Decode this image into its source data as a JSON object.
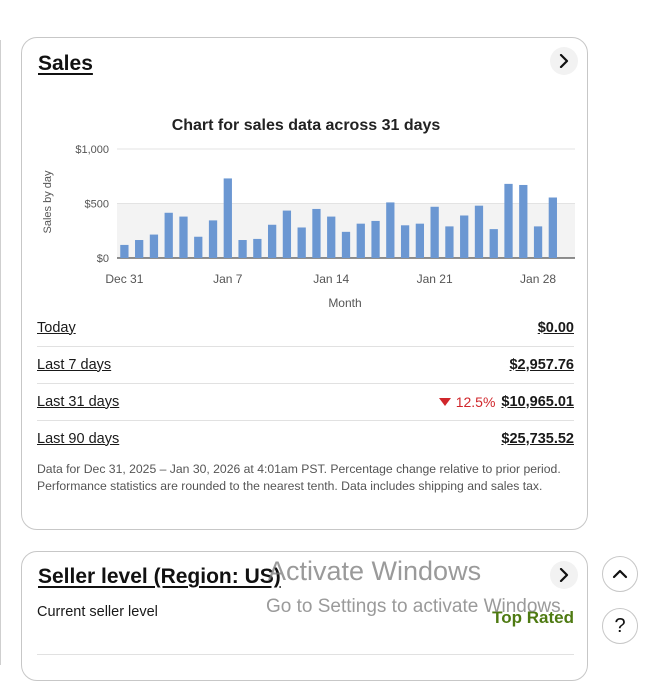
{
  "sales_card": {
    "title": "Sales",
    "chevron_icon": "chevron-right-icon",
    "rows": [
      {
        "label": "Today",
        "value": "$0.00"
      },
      {
        "label": "Last 7 days",
        "value": "$2,957.76"
      },
      {
        "label": "Last 31 days",
        "value": "$10,965.01",
        "change": "12.5%",
        "change_direction": "down"
      },
      {
        "label": "Last 90 days",
        "value": "$25,735.52"
      }
    ],
    "footnote": "Data for Dec 31, 2025 – Jan 30, 2026 at 4:01am PST. Percentage change relative to prior period. Performance statistics are rounded to the nearest tenth. Data includes shipping and sales tax."
  },
  "chart_data": {
    "type": "bar",
    "title": "Chart for sales data across 31 days",
    "xlabel": "Month",
    "ylabel": "Sales by day",
    "ylim": [
      0,
      1000
    ],
    "yticks": [
      "$0",
      "$500",
      "$1,000"
    ],
    "ytick_values": [
      0,
      500,
      1000
    ],
    "xticks": [
      "Dec 31",
      "Jan 7",
      "Jan 14",
      "Jan 21",
      "Jan 28"
    ],
    "xtick_indices": [
      0,
      7,
      14,
      21,
      28
    ],
    "grid": true,
    "bar_color": "#6b97d2",
    "values": [
      120,
      165,
      215,
      415,
      380,
      195,
      345,
      730,
      165,
      175,
      305,
      435,
      280,
      450,
      380,
      240,
      315,
      340,
      510,
      300,
      315,
      470,
      290,
      390,
      480,
      265,
      680,
      670,
      290,
      555,
      0
    ]
  },
  "seller_card": {
    "title": "Seller level (Region: US)",
    "chevron_icon": "chevron-right-icon",
    "current_label": "Current seller level",
    "current_value": "Top Rated"
  },
  "watermark": {
    "line1": "Activate Windows",
    "line2": "Go to Settings to activate Windows."
  },
  "floating": {
    "scroll_top_icon": "chevron-up-icon",
    "help_label": "?"
  }
}
